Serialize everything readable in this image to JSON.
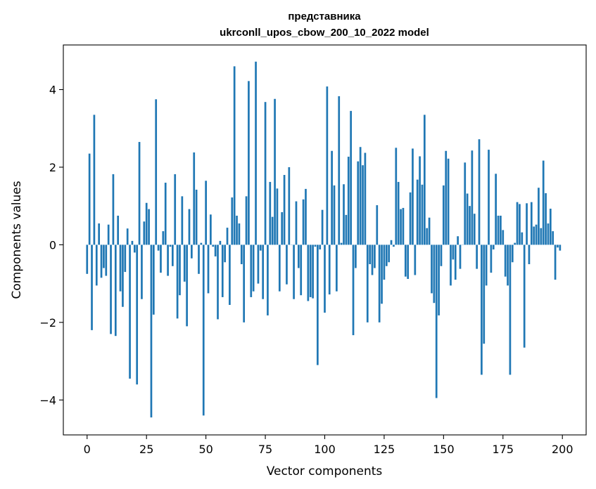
{
  "chart_data": {
    "type": "bar",
    "title": "представника",
    "subtitle": "ukrconll_upos_cbow_200_10_2022 model",
    "xlabel": "Vector components",
    "ylabel": "Components values",
    "xlim": [
      -10,
      210
    ],
    "ylim": [
      -4.9,
      5.15
    ],
    "xticks": [
      0,
      25,
      50,
      75,
      100,
      125,
      150,
      175,
      200
    ],
    "yticks": [
      -4,
      -2,
      0,
      2,
      4
    ],
    "ytick_labels": [
      "−4",
      "−2",
      "0",
      "2",
      "4"
    ],
    "bar_color": "#1f77b4",
    "x": [
      0,
      1,
      2,
      3,
      4,
      5,
      6,
      7,
      8,
      9,
      10,
      11,
      12,
      13,
      14,
      15,
      16,
      17,
      18,
      19,
      20,
      21,
      22,
      23,
      24,
      25,
      26,
      27,
      28,
      29,
      30,
      31,
      32,
      33,
      34,
      35,
      36,
      37,
      38,
      39,
      40,
      41,
      42,
      43,
      44,
      45,
      46,
      47,
      48,
      49,
      50,
      51,
      52,
      53,
      54,
      55,
      56,
      57,
      58,
      59,
      60,
      61,
      62,
      63,
      64,
      65,
      66,
      67,
      68,
      69,
      70,
      71,
      72,
      73,
      74,
      75,
      76,
      77,
      78,
      79,
      80,
      81,
      82,
      83,
      84,
      85,
      86,
      87,
      88,
      89,
      90,
      91,
      92,
      93,
      94,
      95,
      96,
      97,
      98,
      99,
      100,
      101,
      102,
      103,
      104,
      105,
      106,
      107,
      108,
      109,
      110,
      111,
      112,
      113,
      114,
      115,
      116,
      117,
      118,
      119,
      120,
      121,
      122,
      123,
      124,
      125,
      126,
      127,
      128,
      129,
      130,
      131,
      132,
      133,
      134,
      135,
      136,
      137,
      138,
      139,
      140,
      141,
      142,
      143,
      144,
      145,
      146,
      147,
      148,
      149,
      150,
      151,
      152,
      153,
      154,
      155,
      156,
      157,
      158,
      159,
      160,
      161,
      162,
      163,
      164,
      165,
      166,
      167,
      168,
      169,
      170,
      171,
      172,
      173,
      174,
      175,
      176,
      177,
      178,
      179,
      180,
      181,
      182,
      183,
      184,
      185,
      186,
      187,
      188,
      189,
      190,
      191,
      192,
      193,
      194,
      195,
      196,
      197,
      198,
      199
    ],
    "values": [
      -0.75,
      2.35,
      -2.2,
      3.35,
      -1.05,
      0.55,
      -0.85,
      -0.6,
      -0.8,
      0.52,
      -2.3,
      1.82,
      -2.35,
      0.75,
      -1.2,
      -1.6,
      -0.7,
      0.42,
      -3.45,
      0.1,
      -0.2,
      -3.6,
      2.65,
      -1.4,
      0.6,
      1.08,
      0.92,
      -4.45,
      -1.8,
      3.75,
      -0.15,
      -0.72,
      0.35,
      1.6,
      -0.8,
      -0.05,
      -0.55,
      1.82,
      -1.9,
      -1.3,
      1.25,
      -0.95,
      -2.1,
      0.92,
      -0.35,
      2.38,
      1.42,
      -0.75,
      0.05,
      -4.4,
      1.65,
      -1.25,
      0.78,
      -0.05,
      -0.3,
      -1.92,
      0.1,
      -1.35,
      -0.45,
      0.44,
      -1.55,
      1.22,
      4.6,
      0.75,
      0.55,
      -0.5,
      -2.0,
      1.25,
      4.22,
      -1.35,
      -1.2,
      4.72,
      -1.0,
      -0.15,
      -1.4,
      3.68,
      -1.82,
      1.62,
      0.72,
      3.76,
      1.45,
      -1.2,
      0.84,
      1.8,
      -1.02,
      2.0,
      0.0,
      -1.4,
      1.12,
      -0.6,
      -1.3,
      1.17,
      1.44,
      -1.45,
      -1.35,
      -1.38,
      -0.05,
      -3.1,
      -0.12,
      0.9,
      -1.75,
      4.08,
      -1.28,
      2.42,
      1.53,
      -1.2,
      3.83,
      0.05,
      1.56,
      0.77,
      2.27,
      3.45,
      -2.33,
      -0.6,
      2.15,
      2.52,
      2.05,
      2.37,
      -2.0,
      -0.5,
      -0.78,
      -0.6,
      1.02,
      -2.0,
      -1.52,
      -0.9,
      -0.55,
      -0.45,
      0.12,
      -0.05,
      2.5,
      1.62,
      0.92,
      0.95,
      -0.82,
      -0.88,
      1.35,
      2.48,
      -0.78,
      1.68,
      2.28,
      1.55,
      3.35,
      0.43,
      0.7,
      -1.25,
      -1.5,
      -3.95,
      -1.82,
      -0.55,
      1.53,
      2.42,
      2.22,
      -1.05,
      -0.38,
      -0.9,
      0.22,
      -0.62,
      0.0,
      2.12,
      1.32,
      1.0,
      2.43,
      0.8,
      -0.62,
      2.72,
      -3.35,
      -2.55,
      -1.05,
      2.45,
      -0.72,
      -0.12,
      1.83,
      0.75,
      0.75,
      0.38,
      -0.82,
      -1.05,
      -3.35,
      -0.45,
      0.05,
      1.1,
      1.05,
      0.32,
      -2.65,
      1.07,
      -0.5,
      1.1,
      0.47,
      0.52,
      1.47,
      0.43,
      2.17,
      1.33,
      0.55,
      0.93,
      0.35,
      -0.9,
      -0.07,
      -0.15
    ]
  }
}
